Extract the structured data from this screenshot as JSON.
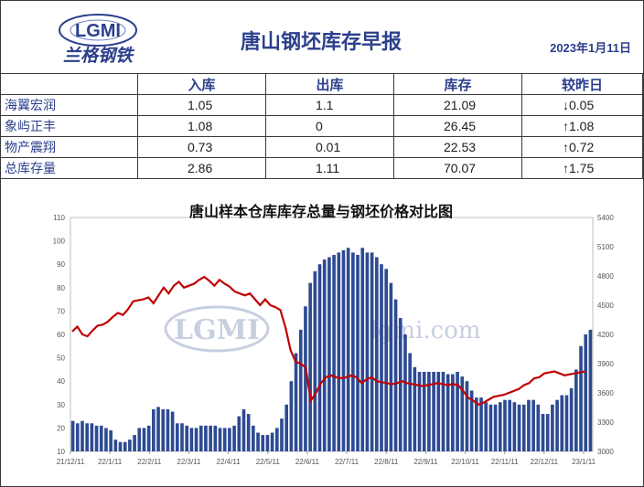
{
  "header": {
    "logo_text": "LGMI",
    "logo_subtitle": "兰格钢铁",
    "title": "唐山钢坯库存早报",
    "date": "2023年1月11日"
  },
  "table": {
    "columns": [
      "",
      "入库",
      "出库",
      "库存",
      "较昨日"
    ],
    "rows": [
      {
        "name": "海翼宏润",
        "in": "1.05",
        "out": "1.1",
        "stock": "21.09",
        "change": "↓0.05",
        "direction": "down"
      },
      {
        "name": "象屿正丰",
        "in": "1.08",
        "out": "0",
        "stock": "26.45",
        "change": "↑1.08",
        "direction": "up"
      },
      {
        "name": "物产震翔",
        "in": "0.73",
        "out": "0.01",
        "stock": "22.53",
        "change": "↑0.72",
        "direction": "up"
      },
      {
        "name": "总库存量",
        "in": "2.86",
        "out": "1.11",
        "stock": "70.07",
        "change": "↑1.75",
        "direction": "up"
      }
    ],
    "colors": {
      "down": "#3a9a3a",
      "up": "#cc2222",
      "header_text": "#2b3f8c"
    }
  },
  "chart_data": {
    "type": "bar",
    "title": "唐山样本仓库库存总量与钢坯价格对比图",
    "watermark": "LGMI",
    "watermark_url": "lgmi.com",
    "x_ticks": [
      "21/12/11",
      "22/1/11",
      "22/2/11",
      "22/3/11",
      "22/4/11",
      "22/5/11",
      "22/6/11",
      "22/7/11",
      "22/8/11",
      "22/9/11",
      "22/10/11",
      "22/11/11",
      "22/12/11",
      "23/1/11"
    ],
    "y_left": {
      "min": 10,
      "max": 110,
      "ticks": [
        10,
        20,
        30,
        40,
        50,
        60,
        70,
        80,
        90,
        100,
        110
      ]
    },
    "y_right": {
      "min": 3000,
      "max": 5400,
      "ticks": [
        3000,
        3300,
        3600,
        3900,
        4200,
        4500,
        4800,
        5100,
        5400
      ]
    },
    "colors": {
      "bars": "#2d4a93",
      "line": "#c00000"
    },
    "series": [
      {
        "kind": "bar",
        "axis": "left",
        "values": [
          23,
          22,
          23,
          22,
          22,
          21,
          21,
          20,
          19,
          15,
          14,
          14,
          15,
          17,
          20,
          20,
          21,
          28,
          29,
          28,
          28,
          27,
          22,
          22,
          21,
          20,
          20,
          21,
          21,
          21,
          21,
          20,
          20,
          20,
          21,
          25,
          28,
          26,
          21,
          18,
          17,
          17,
          18,
          20,
          24,
          30,
          40,
          52,
          62,
          72,
          82,
          87,
          90,
          92,
          93,
          94,
          95,
          96,
          97,
          95,
          94,
          97,
          95,
          95,
          93,
          90,
          88,
          82,
          75,
          67,
          60,
          52,
          46,
          44,
          44,
          44,
          44,
          44,
          44,
          43,
          43,
          44,
          42,
          40,
          36,
          33,
          33,
          31,
          30,
          30,
          31,
          32,
          32,
          31,
          30,
          30,
          32,
          32,
          30,
          26,
          26,
          30,
          32,
          34,
          34,
          37,
          45,
          55,
          60,
          62
        ]
      },
      {
        "kind": "line",
        "axis": "right",
        "values": [
          4230,
          4280,
          4200,
          4180,
          4240,
          4290,
          4300,
          4330,
          4380,
          4420,
          4400,
          4460,
          4540,
          4550,
          4560,
          4580,
          4520,
          4600,
          4680,
          4620,
          4700,
          4740,
          4680,
          4700,
          4720,
          4760,
          4790,
          4750,
          4700,
          4760,
          4720,
          4690,
          4640,
          4620,
          4600,
          4620,
          4560,
          4500,
          4560,
          4500,
          4480,
          4450,
          4270,
          4040,
          3920,
          3900,
          3860,
          3520,
          3600,
          3700,
          3760,
          3780,
          3760,
          3750,
          3760,
          3780,
          3760,
          3700,
          3740,
          3760,
          3720,
          3710,
          3700,
          3690,
          3700,
          3720,
          3700,
          3690,
          3680,
          3670,
          3680,
          3690,
          3700,
          3690,
          3680,
          3690,
          3680,
          3620,
          3550,
          3520,
          3480,
          3500,
          3530,
          3560,
          3570,
          3580,
          3600,
          3620,
          3640,
          3680,
          3700,
          3750,
          3760,
          3800,
          3810,
          3820,
          3800,
          3780,
          3790,
          3800,
          3810,
          3820
        ]
      }
    ]
  }
}
